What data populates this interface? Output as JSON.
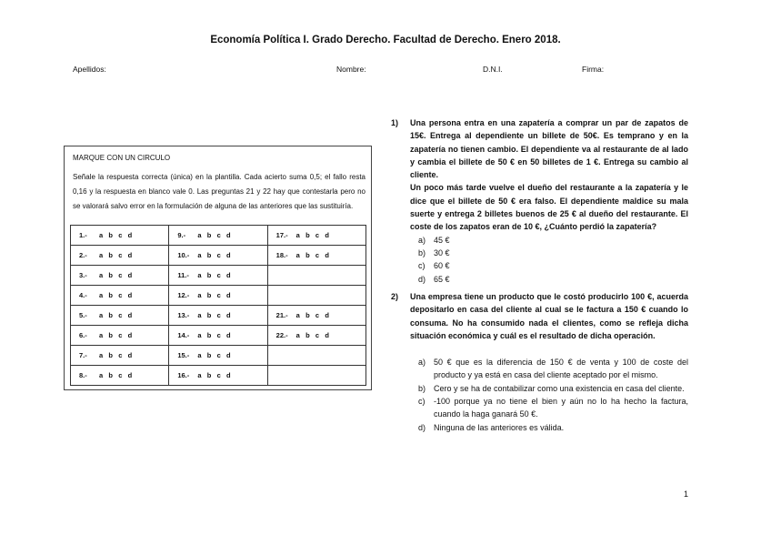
{
  "title": "Economía Política I. Grado Derecho. Facultad de Derecho. Enero 2018.",
  "header_fields": {
    "apellidos": "Apellidos:",
    "nombre": "Nombre:",
    "dni": "D.N.I.",
    "firma": "Firma:"
  },
  "answer_box": {
    "heading": "MARQUE CON UN CIRCULO",
    "instructions": "Señale la respuesta correcta (única) en la plantilla. Cada acierto suma 0,5; el fallo resta 0,16 y la respuesta en blanco vale 0. Las preguntas 21 y 22 hay que contestarla pero no se valorará salvo error en la formulación de alguna de las anteriores que las sustituiría.",
    "choices": "a   b   c   d",
    "rows": [
      [
        "1.-",
        "9.-",
        "17.-"
      ],
      [
        "2.-",
        "10.-",
        "18.-"
      ],
      [
        "3.-",
        "11.-",
        ""
      ],
      [
        "4.-",
        "12.-",
        ""
      ],
      [
        "5.-",
        "13.-",
        "21.-"
      ],
      [
        "6.-",
        "14.-",
        "22.-"
      ],
      [
        "7.-",
        "15.-",
        ""
      ],
      [
        "8.-",
        "16.-",
        ""
      ]
    ]
  },
  "questions": [
    {
      "number": "1)",
      "text": "Una persona entra en una zapatería a comprar un par de zapatos de 15€. Entrega al dependiente un billete de 50€. Es temprano y en la zapatería no tienen cambio. El dependiente va al restaurante de al lado y cambia el billete de 50 € en 50 billetes de 1 €. Entrega su cambio al cliente.",
      "text2": "Un poco más tarde vuelve el dueño del restaurante a la zapatería y le dice que el billete de 50 € era falso. El dependiente maldice su mala suerte y entrega 2 billetes buenos de 25 € al dueño del restaurante. El coste de los zapatos eran de 10 €, ¿Cuánto perdió la zapatería?",
      "options": [
        {
          "label": "a)",
          "text": "45 €"
        },
        {
          "label": "b)",
          "text": "30 €"
        },
        {
          "label": "c)",
          "text": "60 €"
        },
        {
          "label": "d)",
          "text": "65 €"
        }
      ]
    },
    {
      "number": "2)",
      "text": "Una empresa tiene un producto que le costó producirlo 100 €, acuerda depositarlo en casa del cliente al cual se le factura a 150 € cuando lo consuma. No ha consumido nada el clientes, como se refleja dicha situación económica y cuál es el resultado de dicha operación.",
      "options": [
        {
          "label": "a)",
          "text": "50 € que es la diferencia de 150 € de venta y 100 de coste del producto y ya está en casa del cliente aceptado por el mismo."
        },
        {
          "label": "b)",
          "text": "Cero y se ha de contabilizar como una existencia en casa del cliente."
        },
        {
          "label": "c)",
          "text": "-100 porque ya no tiene el bien y aún no lo ha hecho la factura, cuando la haga ganará 50 €."
        },
        {
          "label": "d)",
          "text": "Ninguna de las anteriores es válida."
        }
      ]
    }
  ],
  "page_number": "1"
}
